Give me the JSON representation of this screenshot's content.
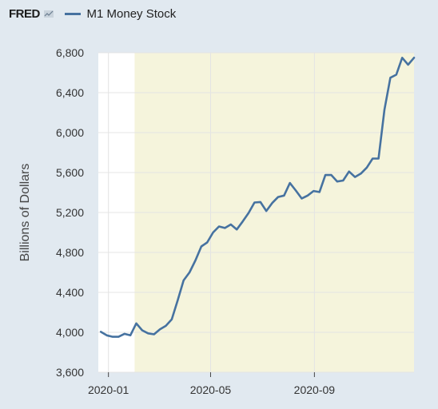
{
  "header": {
    "logo_text": "FRED",
    "logo_icon": "chart-line-icon"
  },
  "chart_data": {
    "type": "line",
    "title": "",
    "xlabel": "",
    "ylabel": "Billions of Dollars",
    "ylim": [
      3600,
      6800
    ],
    "yticks": [
      3600,
      4000,
      4400,
      4800,
      5200,
      5600,
      6000,
      6400,
      6800
    ],
    "ytick_labels": [
      "3,600",
      "4,000",
      "4,400",
      "4,800",
      "5,200",
      "5,600",
      "6,000",
      "6,400",
      "6,800"
    ],
    "xticks": [
      "2020-01",
      "2020-05",
      "2020-09"
    ],
    "grid": true,
    "legend_position": "top-left",
    "shaded_region": {
      "start": "2020-02",
      "end": "2020-12",
      "color": "#f5f4dc"
    },
    "series": [
      {
        "name": "M1 Money Stock",
        "color": "#4672a0",
        "x": [
          "2019-12-23",
          "2019-12-30",
          "2020-01-06",
          "2020-01-13",
          "2020-01-20",
          "2020-01-27",
          "2020-02-03",
          "2020-02-10",
          "2020-02-17",
          "2020-02-24",
          "2020-03-02",
          "2020-03-09",
          "2020-03-16",
          "2020-03-23",
          "2020-03-30",
          "2020-04-06",
          "2020-04-13",
          "2020-04-20",
          "2020-04-27",
          "2020-05-04",
          "2020-05-11",
          "2020-05-18",
          "2020-05-25",
          "2020-06-01",
          "2020-06-08",
          "2020-06-15",
          "2020-06-22",
          "2020-06-29",
          "2020-07-06",
          "2020-07-13",
          "2020-07-20",
          "2020-07-27",
          "2020-08-03",
          "2020-08-10",
          "2020-08-17",
          "2020-08-24",
          "2020-08-31",
          "2020-09-07",
          "2020-09-14",
          "2020-09-21",
          "2020-09-28",
          "2020-10-05",
          "2020-10-12",
          "2020-10-19",
          "2020-10-26",
          "2020-11-02",
          "2020-11-09",
          "2020-11-16",
          "2020-11-23",
          "2020-11-30",
          "2020-12-07",
          "2020-12-14",
          "2020-12-21",
          "2020-12-28"
        ],
        "values": [
          4005,
          3970,
          3955,
          3955,
          3985,
          3970,
          4090,
          4020,
          3990,
          3980,
          4030,
          4065,
          4130,
          4320,
          4520,
          4600,
          4720,
          4860,
          4900,
          5000,
          5060,
          5045,
          5080,
          5030,
          5110,
          5195,
          5300,
          5305,
          5215,
          5295,
          5355,
          5370,
          5495,
          5420,
          5340,
          5370,
          5415,
          5405,
          5575,
          5575,
          5510,
          5520,
          5610,
          5555,
          5590,
          5650,
          5740,
          5740,
          6230,
          6550,
          6580,
          6750,
          6680,
          6750
        ]
      }
    ]
  }
}
